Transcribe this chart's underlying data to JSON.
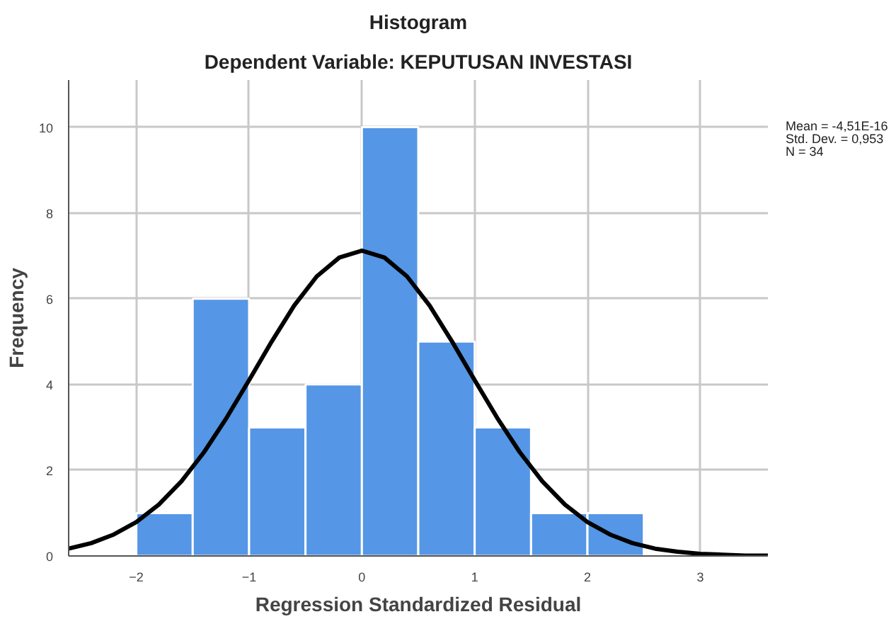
{
  "chart_data": {
    "type": "histogram",
    "title": "Histogram",
    "subtitle": "Dependent Variable: KEPUTUSAN INVESTASI",
    "xlabel": "Regression Standardized Residual",
    "ylabel": "Frequency",
    "bins": [
      -2,
      -1.5,
      -1,
      -0.5,
      0,
      0.5,
      1,
      1.5,
      2,
      2.5
    ],
    "values": [
      1,
      6,
      3,
      4,
      10,
      5,
      3,
      1,
      1
    ],
    "color": "#5596e6",
    "series": [
      {
        "type": "line",
        "color": "#000000",
        "x": [
          -2.6,
          -2.4,
          -2.2,
          -2.0,
          -1.8,
          -1.6,
          -1.4,
          -1.2,
          -1.0,
          -0.8,
          -0.6,
          -0.4,
          -0.2,
          0,
          0.2,
          0.4,
          0.6,
          0.8,
          1.0,
          1.2,
          1.4,
          1.6,
          1.8,
          2.0,
          2.2,
          2.4,
          2.6,
          2.8,
          3.0,
          3.2,
          3.4,
          3.6
        ],
        "values": [
          0.17,
          0.3,
          0.5,
          0.79,
          1.2,
          1.74,
          2.42,
          3.22,
          4.1,
          5.0,
          5.84,
          6.52,
          6.96,
          7.12,
          6.96,
          6.52,
          5.84,
          5.0,
          4.1,
          3.22,
          2.42,
          1.74,
          1.2,
          0.79,
          0.5,
          0.3,
          0.17,
          0.1,
          0.05,
          0.03,
          0.01,
          0.01
        ]
      }
    ],
    "xlim": [
      -2.6,
      3.6
    ],
    "ylim": [
      0,
      11.1
    ],
    "xticks": [
      -2,
      -1,
      0,
      1,
      2,
      3
    ],
    "yticks": [
      0,
      2,
      4,
      6,
      8,
      10
    ],
    "grid": true,
    "annotations": [
      "Mean = -4,51E-16",
      "Std. Dev. = 0,953",
      "N = 34"
    ]
  }
}
